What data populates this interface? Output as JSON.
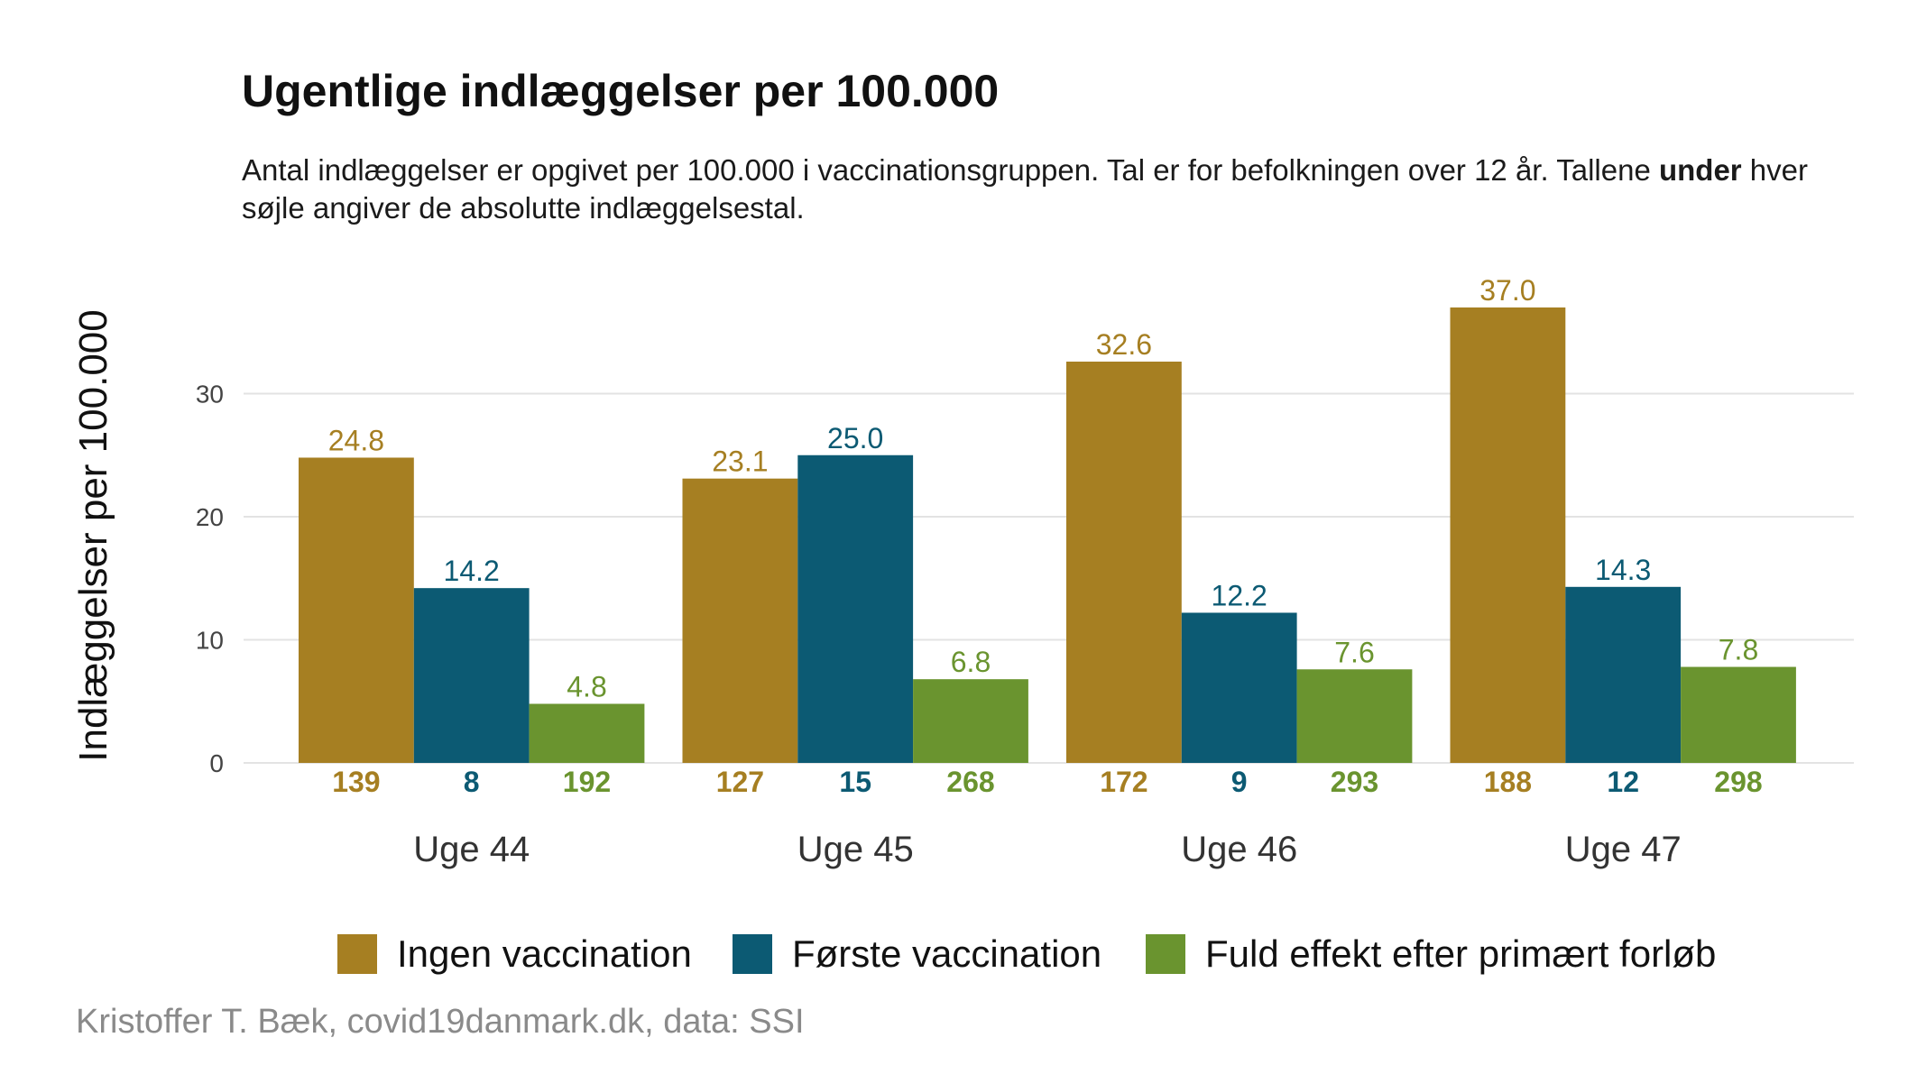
{
  "chart_data": {
    "type": "bar",
    "title": "Ugentlige indlæggelser per 100.000",
    "subtitle_part1": "Antal indlæggelser er opgivet per 100.000 i vaccinationsgruppen. Tal er for befolkningen over 12 år. Tallene ",
    "subtitle_bold": "under",
    "subtitle_part2": " hver søjle angiver de absolutte indlæggelsestal.",
    "ylabel": "Indlæggelser per 100.000",
    "xlabel": "",
    "categories": [
      "Uge 44",
      "Uge 45",
      "Uge 46",
      "Uge 47"
    ],
    "ylim": [
      0,
      40
    ],
    "yticks": [
      0,
      10,
      20,
      30
    ],
    "grid": true,
    "legend_position": "bottom",
    "series": [
      {
        "name": "Ingen vaccination",
        "color": "#A67F22",
        "values": [
          24.8,
          23.1,
          32.6,
          37.0
        ],
        "value_labels": [
          "24.8",
          "23.1",
          "32.6",
          "37.0"
        ],
        "counts": [
          "139",
          "127",
          "172",
          "188"
        ]
      },
      {
        "name": "Første vaccination",
        "color": "#0C5A73",
        "values": [
          14.2,
          25.0,
          12.2,
          14.3
        ],
        "value_labels": [
          "14.2",
          "25.0",
          "12.2",
          "14.3"
        ],
        "counts": [
          "8",
          "15",
          "9",
          "12"
        ]
      },
      {
        "name": "Fuld effekt efter primært forløb",
        "color": "#6A942F",
        "values": [
          4.8,
          6.8,
          7.6,
          7.8
        ],
        "value_labels": [
          "4.8",
          "6.8",
          "7.6",
          "7.8"
        ],
        "counts": [
          "192",
          "268",
          "293",
          "298"
        ]
      }
    ],
    "caption": "Kristoffer T. Bæk, covid19danmark.dk, data: SSI"
  }
}
